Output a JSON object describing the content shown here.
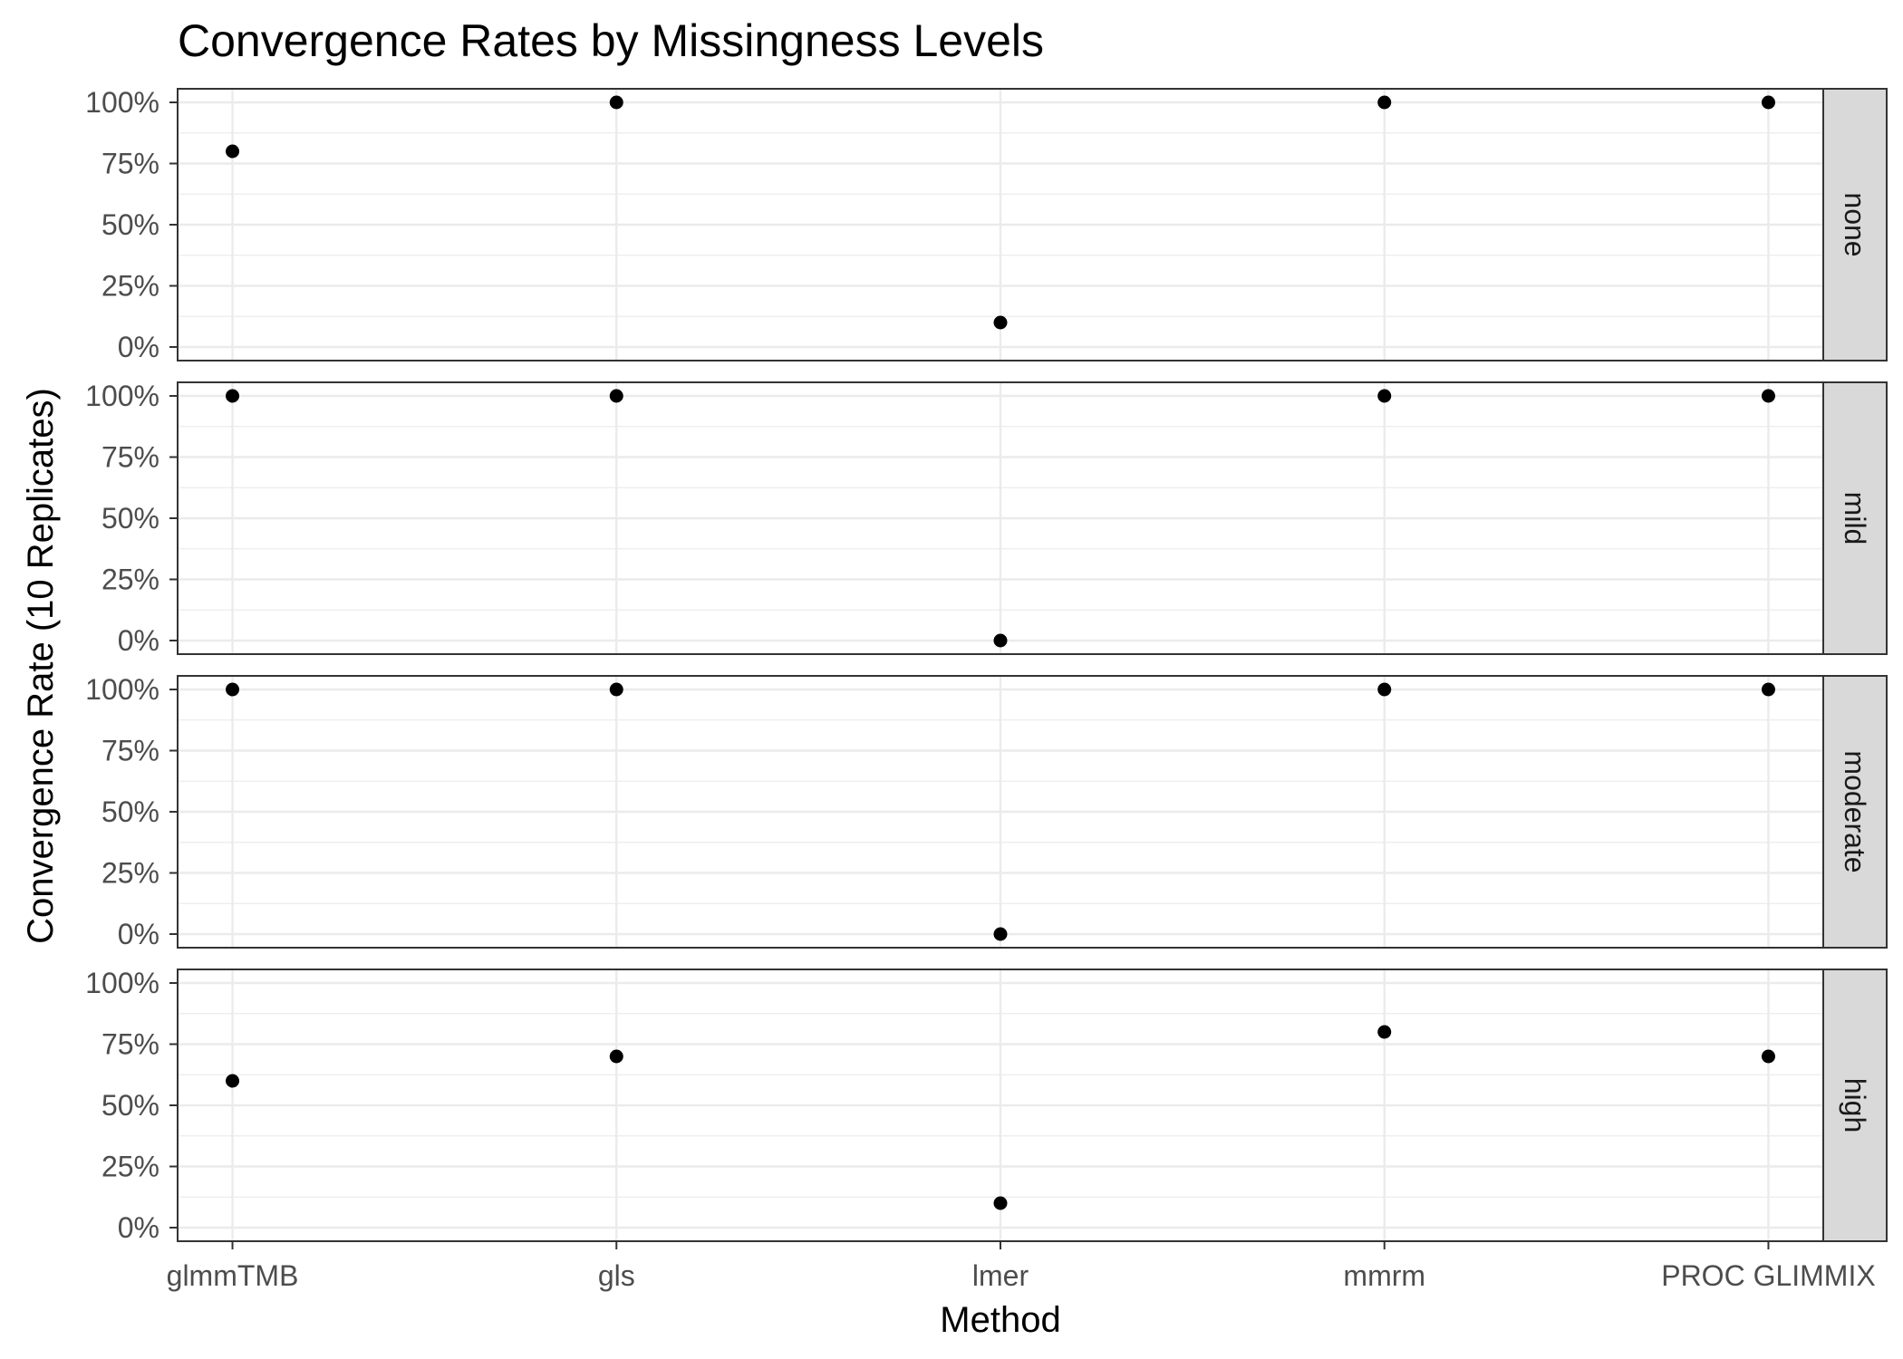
{
  "chart_data": {
    "type": "scatter",
    "title": "Convergence Rates by Missingness Levels",
    "xlabel": "Method",
    "ylabel": "Convergence Rate (10 Replicates)",
    "categories": [
      "glmmTMB",
      "gls",
      "lmer",
      "mmrm",
      "PROC GLIMMIX"
    ],
    "y_ticks": [
      "0%",
      "25%",
      "50%",
      "75%",
      "100%"
    ],
    "ylim": [
      0,
      1
    ],
    "grid": true,
    "facet_strip_position": "right",
    "facets": [
      {
        "label": "none",
        "values": [
          0.8,
          1.0,
          0.1,
          1.0,
          1.0
        ]
      },
      {
        "label": "mild",
        "values": [
          1.0,
          1.0,
          0.0,
          1.0,
          1.0
        ]
      },
      {
        "label": "moderate",
        "values": [
          1.0,
          1.0,
          0.0,
          1.0,
          1.0
        ]
      },
      {
        "label": "high",
        "values": [
          0.6,
          0.7,
          0.1,
          0.8,
          0.7
        ]
      }
    ],
    "point_color": "#000000"
  }
}
